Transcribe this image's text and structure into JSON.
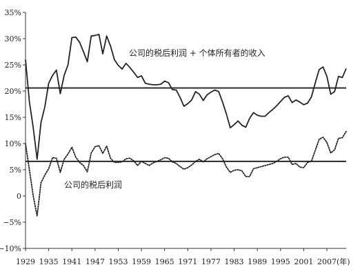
{
  "chart_data": {
    "type": "line",
    "title": "",
    "xlabel": "(年)",
    "ylabel": "",
    "xlim": [
      1929,
      2012
    ],
    "ylim": [
      -10,
      35
    ],
    "grid": false,
    "legend": "none",
    "y_ticks": [
      "35%",
      "30%",
      "25%",
      "20%",
      "15%",
      "10%",
      "5%",
      "0",
      "−5%",
      "−10%"
    ],
    "x_ticks": [
      "1929",
      "1935",
      "1941",
      "1947",
      "1953",
      "1959",
      "1965",
      "1971",
      "1977",
      "1983",
      "1989",
      "1995",
      "2001",
      "2007"
    ],
    "series": [
      {
        "style": "solid",
        "color": "#222222",
        "x": [
          1929,
          1930,
          1931,
          1932,
          1933,
          1934,
          1935,
          1936,
          1937,
          1938,
          1939,
          1940,
          1941,
          1942,
          1943,
          1944,
          1945,
          1946,
          1947,
          1948,
          1949,
          1950,
          1951,
          1952,
          1953,
          1954,
          1955,
          1956,
          1957,
          1958,
          1959,
          1960,
          1961,
          1962,
          1963,
          1964,
          1965,
          1966,
          1967,
          1968,
          1969,
          1970,
          1971,
          1972,
          1973,
          1974,
          1975,
          1976,
          1977,
          1978,
          1979,
          1980,
          1981,
          1982,
          1983,
          1984,
          1985,
          1986,
          1987,
          1988,
          1989,
          1990,
          1991,
          1992,
          1993,
          1994,
          1995,
          1996,
          1997,
          1998,
          1999,
          2000,
          2001,
          2002,
          2003,
          2004,
          2005,
          2006,
          2007,
          2008,
          2009,
          2010,
          2011,
          2012
        ],
        "values": [
          26.0,
          18.0,
          13.0,
          7.0,
          14.0,
          17.0,
          21.5,
          23.0,
          24.0,
          19.5,
          23.0,
          25.0,
          30.2,
          30.3,
          29.3,
          27.5,
          25.6,
          30.5,
          30.6,
          30.8,
          27.1,
          30.5,
          28.6,
          26.0,
          24.9,
          24.2,
          25.3,
          24.5,
          23.6,
          22.6,
          22.9,
          21.5,
          21.3,
          21.2,
          21.2,
          21.3,
          21.9,
          21.6,
          20.3,
          20.2,
          18.8,
          17.1,
          17.6,
          18.3,
          19.9,
          19.4,
          18.2,
          19.3,
          19.8,
          20.2,
          19.9,
          17.9,
          15.6,
          13.0,
          13.6,
          14.3,
          13.5,
          13.1,
          14.8,
          15.9,
          15.4,
          15.2,
          15.2,
          15.9,
          16.5,
          17.2,
          18.0,
          18.8,
          19.1,
          17.8,
          18.3,
          17.9,
          17.4,
          17.7,
          18.9,
          21.6,
          24.1,
          24.6,
          22.8,
          19.4,
          19.9,
          22.8,
          22.6,
          24.3
        ]
      },
      {
        "style": "dotted",
        "color": "#222222",
        "x": [
          1929,
          1930,
          1931,
          1932,
          1933,
          1934,
          1935,
          1936,
          1937,
          1938,
          1939,
          1940,
          1941,
          1942,
          1943,
          1944,
          1945,
          1946,
          1947,
          1948,
          1949,
          1950,
          1951,
          1952,
          1953,
          1954,
          1955,
          1956,
          1957,
          1958,
          1959,
          1960,
          1961,
          1962,
          1963,
          1964,
          1965,
          1966,
          1967,
          1968,
          1969,
          1970,
          1971,
          1972,
          1973,
          1974,
          1975,
          1976,
          1977,
          1978,
          1979,
          1980,
          1981,
          1982,
          1983,
          1984,
          1985,
          1986,
          1987,
          1988,
          1989,
          1990,
          1991,
          1992,
          1993,
          1994,
          1995,
          1996,
          1997,
          1998,
          1999,
          2000,
          2001,
          2002,
          2003,
          2004,
          2005,
          2006,
          2007,
          2008,
          2009,
          2010,
          2011,
          2012
        ],
        "values": [
          10.0,
          5.0,
          0.0,
          -3.8,
          2.5,
          4.0,
          5.2,
          7.3,
          7.2,
          4.5,
          7.0,
          8.0,
          9.3,
          7.4,
          6.4,
          5.8,
          4.6,
          8.2,
          9.4,
          9.6,
          8.1,
          9.5,
          7.2,
          6.4,
          6.4,
          6.5,
          7.1,
          7.2,
          6.7,
          5.8,
          6.6,
          6.2,
          5.8,
          6.3,
          6.6,
          6.9,
          7.3,
          7.2,
          6.5,
          6.2,
          5.6,
          5.1,
          5.4,
          5.9,
          6.6,
          7.0,
          6.5,
          7.1,
          7.5,
          7.9,
          8.1,
          7.1,
          5.5,
          4.5,
          4.9,
          5.0,
          4.8,
          3.7,
          3.7,
          5.2,
          5.4,
          5.6,
          5.8,
          6.0,
          6.2,
          6.6,
          7.1,
          7.4,
          7.4,
          6.0,
          6.2,
          5.5,
          5.4,
          6.4,
          6.6,
          8.7,
          10.8,
          11.2,
          10.2,
          8.2,
          8.8,
          11.0,
          11.1,
          12.3
        ]
      }
    ],
    "reference_lines": [
      20.6,
      6.6
    ],
    "annotations": [
      "公司的税后利润 + 个体所有者的收入",
      "公司的税后利润"
    ]
  }
}
